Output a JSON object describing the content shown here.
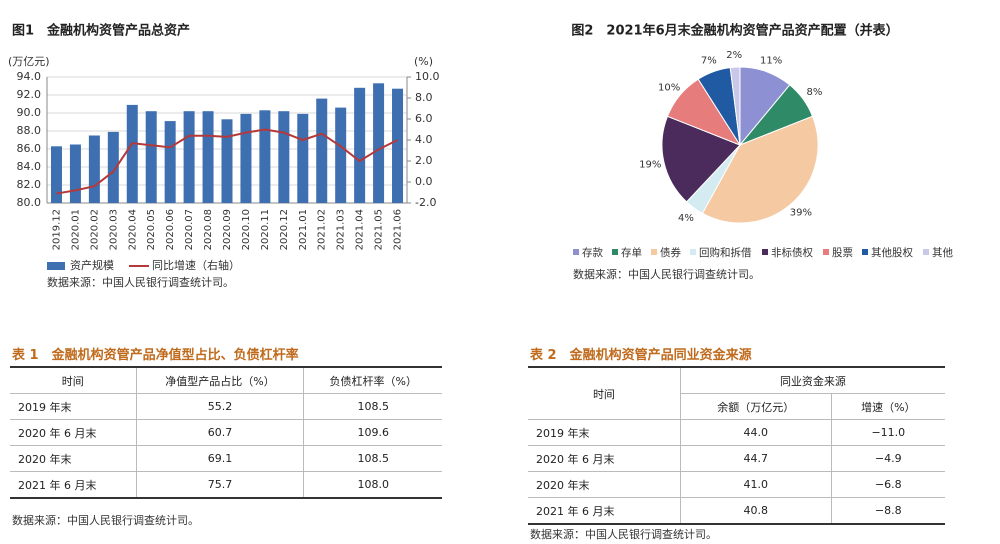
{
  "chart_data": [
    {
      "type": "bar",
      "title": "图1　金融机构资管产品总资产",
      "ylabel": "(万亿元)",
      "y2label": "(%)",
      "categories": [
        "2019.12",
        "2020.01",
        "2020.02",
        "2020.03",
        "2020.04",
        "2020.05",
        "2020.06",
        "2020.07",
        "2020.08",
        "2020.09",
        "2020.10",
        "2020.11",
        "2020.12",
        "2021.01",
        "2021.02",
        "2021.03",
        "2021.04",
        "2021.05",
        "2021.06"
      ],
      "series": [
        {
          "name": "资产规模",
          "color": "#3d6fb1",
          "values": [
            86.3,
            86.5,
            87.5,
            87.9,
            90.9,
            90.2,
            89.1,
            90.2,
            90.2,
            89.3,
            89.9,
            90.3,
            90.2,
            89.9,
            91.6,
            90.6,
            92.8,
            93.3,
            92.7
          ]
        },
        {
          "name": "同比增速（右轴）",
          "type": "line",
          "axis": "y2",
          "color": "#b5393a",
          "values": [
            -1.1,
            -0.8,
            -0.4,
            1.0,
            3.7,
            3.5,
            3.3,
            4.4,
            4.4,
            4.3,
            4.7,
            5.0,
            4.7,
            4.0,
            4.6,
            3.4,
            2.0,
            3.1,
            4.0
          ]
        }
      ],
      "ylim": [
        80,
        94
      ],
      "yticks": [
        {
          "value": 80,
          "label": "80.0"
        },
        {
          "value": 82,
          "label": "82.0"
        },
        {
          "value": 84,
          "label": "84.0"
        },
        {
          "value": 86,
          "label": "86.0"
        },
        {
          "value": 88,
          "label": "88.0"
        },
        {
          "value": 90,
          "label": "90.0"
        },
        {
          "value": 92,
          "label": "92.0"
        },
        {
          "value": 94,
          "label": "94.0"
        }
      ],
      "y2lim": [
        -2,
        10
      ],
      "y2ticks": [
        {
          "value": -2,
          "label": "-2.0"
        },
        {
          "value": 0,
          "label": "0.0"
        },
        {
          "value": 2,
          "label": "2.0"
        },
        {
          "value": 4,
          "label": "4.0"
        },
        {
          "value": 6,
          "label": "6.0"
        },
        {
          "value": 8,
          "label": "8.0"
        },
        {
          "value": 10,
          "label": "10.0"
        }
      ],
      "grid": true,
      "source": "数据来源：中国人民银行调查统计司。"
    },
    {
      "type": "pie",
      "title": "图2　2021年6月末金融机构资管产品资产配置（并表）",
      "categories": [
        "存款",
        "存单",
        "债券",
        "回购和拆借",
        "非标债权",
        "股票",
        "其他股权",
        "其他"
      ],
      "values": [
        11,
        8,
        39,
        4,
        19,
        10,
        7,
        2
      ],
      "value_labels": [
        "11%",
        "8%",
        "39%",
        "4%",
        "19%",
        "10%",
        "7%",
        "2%"
      ],
      "colors": [
        "#8d90d2",
        "#2f8a68",
        "#f5c9a2",
        "#d3ebf1",
        "#4a2b5c",
        "#e67c7b",
        "#1f5aa3",
        "#c9c8e8"
      ],
      "source": "数据来源：中国人民银行调查统计司。"
    }
  ],
  "tables": [
    {
      "title": "表 1　金融机构资管产品净值型占比、负债杠杆率",
      "header": [
        "时间",
        "净值型产品占比（%）",
        "负债杠杆率（%）"
      ],
      "rows": [
        [
          "2019 年末",
          "55.2",
          "108.5"
        ],
        [
          "2020 年 6 月末",
          "60.7",
          "109.6"
        ],
        [
          "2020 年末",
          "69.1",
          "108.5"
        ],
        [
          "2021 年 6 月末",
          "75.7",
          "108.0"
        ]
      ],
      "source": "数据来源：中国人民银行调查统计司。"
    },
    {
      "title": "表 2　金融机构资管产品同业资金来源",
      "header": [
        "时间",
        "同业资金来源",
        "余额（万亿元）",
        "增速（%）"
      ],
      "rows": [
        [
          "2019 年末",
          "44.0",
          "−11.0"
        ],
        [
          "2020 年 6 月末",
          "44.7",
          "−4.9"
        ],
        [
          "2020 年末",
          "41.0",
          "−6.8"
        ],
        [
          "2021 年 6 月末",
          "40.8",
          "−8.8"
        ]
      ],
      "source": "数据来源：中国人民银行调查统计司。"
    }
  ]
}
